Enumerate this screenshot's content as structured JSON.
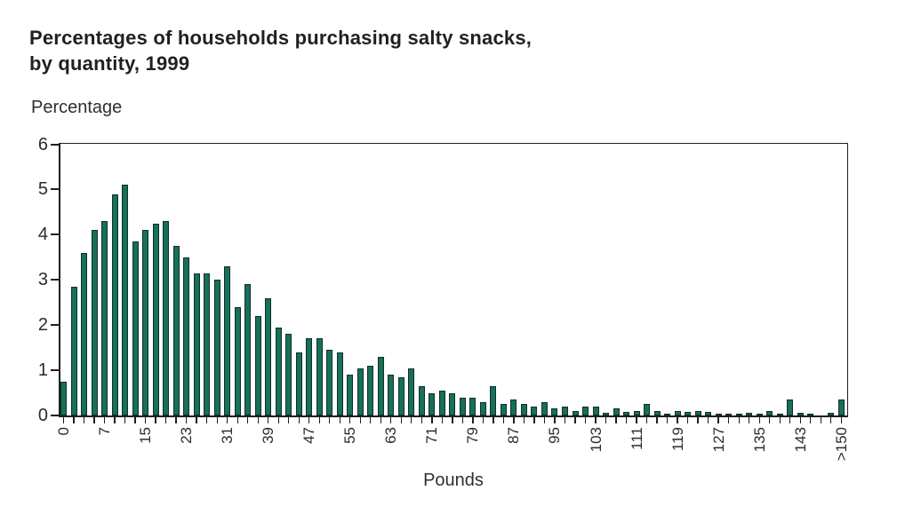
{
  "chart_data": {
    "type": "bar",
    "title_line1": "Percentages of households purchasing salty snacks,",
    "title_line2": "by quantity, 1999",
    "ylabel": "Percentage",
    "xlabel": "Pounds",
    "ylim": [
      0,
      6
    ],
    "yticks": [
      0,
      1,
      2,
      3,
      4,
      5,
      6
    ],
    "n_bars": 77,
    "x_tick_label_every": 4,
    "x_tick_labels": [
      "0",
      "7",
      "15",
      "23",
      "31",
      "39",
      "47",
      "55",
      "63",
      "71",
      "79",
      "87",
      "95",
      "103",
      "111",
      "119",
      "127",
      "135",
      "143",
      ">150"
    ],
    "values": [
      0.75,
      2.85,
      3.6,
      4.1,
      4.3,
      4.9,
      5.1,
      3.85,
      4.1,
      4.25,
      4.3,
      3.75,
      3.5,
      3.15,
      3.15,
      3.0,
      3.3,
      2.4,
      2.9,
      2.2,
      2.6,
      1.95,
      1.8,
      1.4,
      1.7,
      1.7,
      1.45,
      1.4,
      0.9,
      1.05,
      1.1,
      1.3,
      0.9,
      0.85,
      1.05,
      0.65,
      0.5,
      0.55,
      0.5,
      0.4,
      0.4,
      0.3,
      0.65,
      0.25,
      0.35,
      0.25,
      0.2,
      0.3,
      0.15,
      0.2,
      0.1,
      0.2,
      0.2,
      0.05,
      0.15,
      0.08,
      0.1,
      0.25,
      0.1,
      0.03,
      0.1,
      0.07,
      0.1,
      0.08,
      0.04,
      0.02,
      0.01,
      0.05,
      0.03,
      0.1,
      0.03,
      0.35,
      0.05,
      0.02,
      0,
      0.06,
      0.35
    ],
    "bar_color": "#16705a",
    "bar_edge_color": "#132e27",
    "grid": "off",
    "legend": "none",
    "frame": "full-box",
    "x_label_rotation_deg": 90
  }
}
